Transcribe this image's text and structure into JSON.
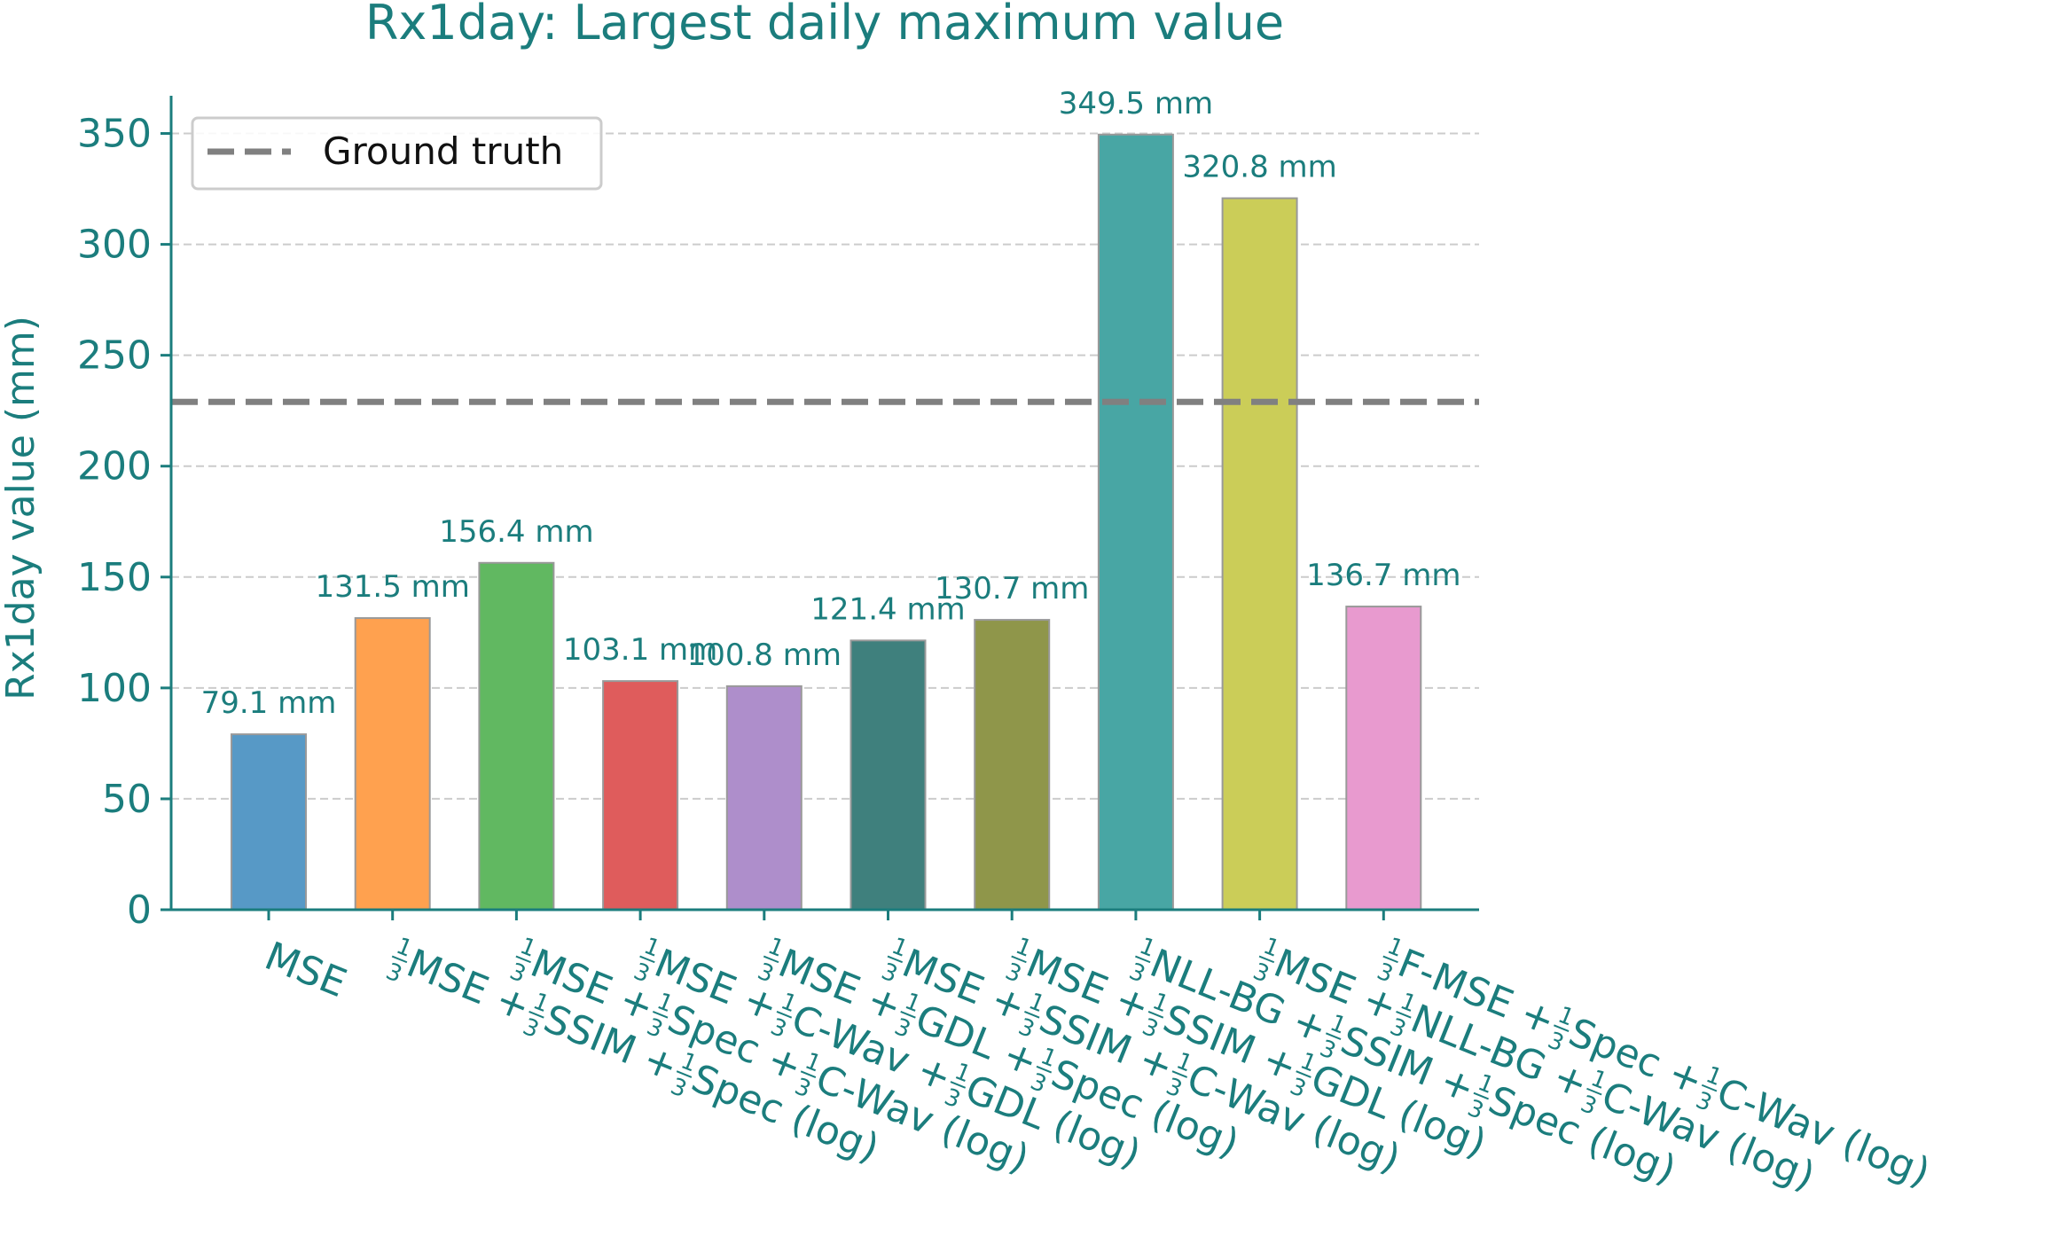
{
  "chart_data": {
    "type": "bar",
    "title": "Rx1day: Largest daily maximum value",
    "ylabel": "Rx1day value (mm)",
    "xlabel": "",
    "ylim": [
      0,
      367
    ],
    "yticks": [
      0,
      50,
      100,
      150,
      200,
      250,
      300,
      350
    ],
    "grid": "horizontal dashed",
    "legend_position": "top-left",
    "reference_line": {
      "name": "Ground truth",
      "value": 229,
      "style": "dashed",
      "color": "#808080"
    },
    "categories": [
      [
        {
          "t": "MSE"
        }
      ],
      [
        {
          "f": true
        },
        {
          "t": "MSE + "
        },
        {
          "f": true
        },
        {
          "t": "SSIM + "
        },
        {
          "f": true
        },
        {
          "t": "Spec (log)"
        }
      ],
      [
        {
          "f": true
        },
        {
          "t": "MSE + "
        },
        {
          "f": true
        },
        {
          "t": "Spec + "
        },
        {
          "f": true
        },
        {
          "t": "C-Wav (log)"
        }
      ],
      [
        {
          "f": true
        },
        {
          "t": "MSE + "
        },
        {
          "f": true
        },
        {
          "t": "C-Wav + "
        },
        {
          "f": true
        },
        {
          "t": "GDL (log)"
        }
      ],
      [
        {
          "f": true
        },
        {
          "t": "MSE + "
        },
        {
          "f": true
        },
        {
          "t": "GDL + "
        },
        {
          "f": true
        },
        {
          "t": "Spec (log)"
        }
      ],
      [
        {
          "f": true
        },
        {
          "t": "MSE + "
        },
        {
          "f": true
        },
        {
          "t": "SSIM + "
        },
        {
          "f": true
        },
        {
          "t": "C-Wav (log)"
        }
      ],
      [
        {
          "f": true
        },
        {
          "t": "MSE + "
        },
        {
          "f": true
        },
        {
          "t": "SSIM + "
        },
        {
          "f": true
        },
        {
          "t": "GDL (log)"
        }
      ],
      [
        {
          "f": true
        },
        {
          "t": "NLL-BG + "
        },
        {
          "f": true
        },
        {
          "t": "SSIM + "
        },
        {
          "f": true
        },
        {
          "t": "Spec (log)"
        }
      ],
      [
        {
          "f": true
        },
        {
          "t": "MSE + "
        },
        {
          "f": true
        },
        {
          "t": "NLL-BG + "
        },
        {
          "f": true
        },
        {
          "t": "C-Wav (log)"
        }
      ],
      [
        {
          "f": true
        },
        {
          "t": "F-MSE + "
        },
        {
          "f": true
        },
        {
          "t": "Spec + "
        },
        {
          "f": true
        },
        {
          "t": "C-Wav (log)"
        }
      ]
    ],
    "fraction": {
      "num": "1",
      "den": "3"
    },
    "values": [
      79.1,
      131.5,
      156.4,
      103.1,
      100.8,
      121.4,
      130.7,
      349.5,
      320.8,
      136.7
    ],
    "value_labels": [
      "79.1 mm",
      "131.5 mm",
      "156.4 mm",
      "103.1 mm",
      "100.8 mm",
      "121.4 mm",
      "130.7 mm",
      "349.5 mm",
      "320.8 mm",
      "136.7 mm"
    ],
    "colors": [
      "#5799c6",
      "#ffa14f",
      "#61b861",
      "#df5c5c",
      "#ae8ecb",
      "#3f807d",
      "#8f964a",
      "#48a6a4",
      "#cbcd58",
      "#e89acf"
    ]
  },
  "style": {
    "text_color": "#1b7d7d",
    "axis_color": "#1b7d7d",
    "grid_color": "#cccccc",
    "bar_edge_color": "#999999"
  }
}
